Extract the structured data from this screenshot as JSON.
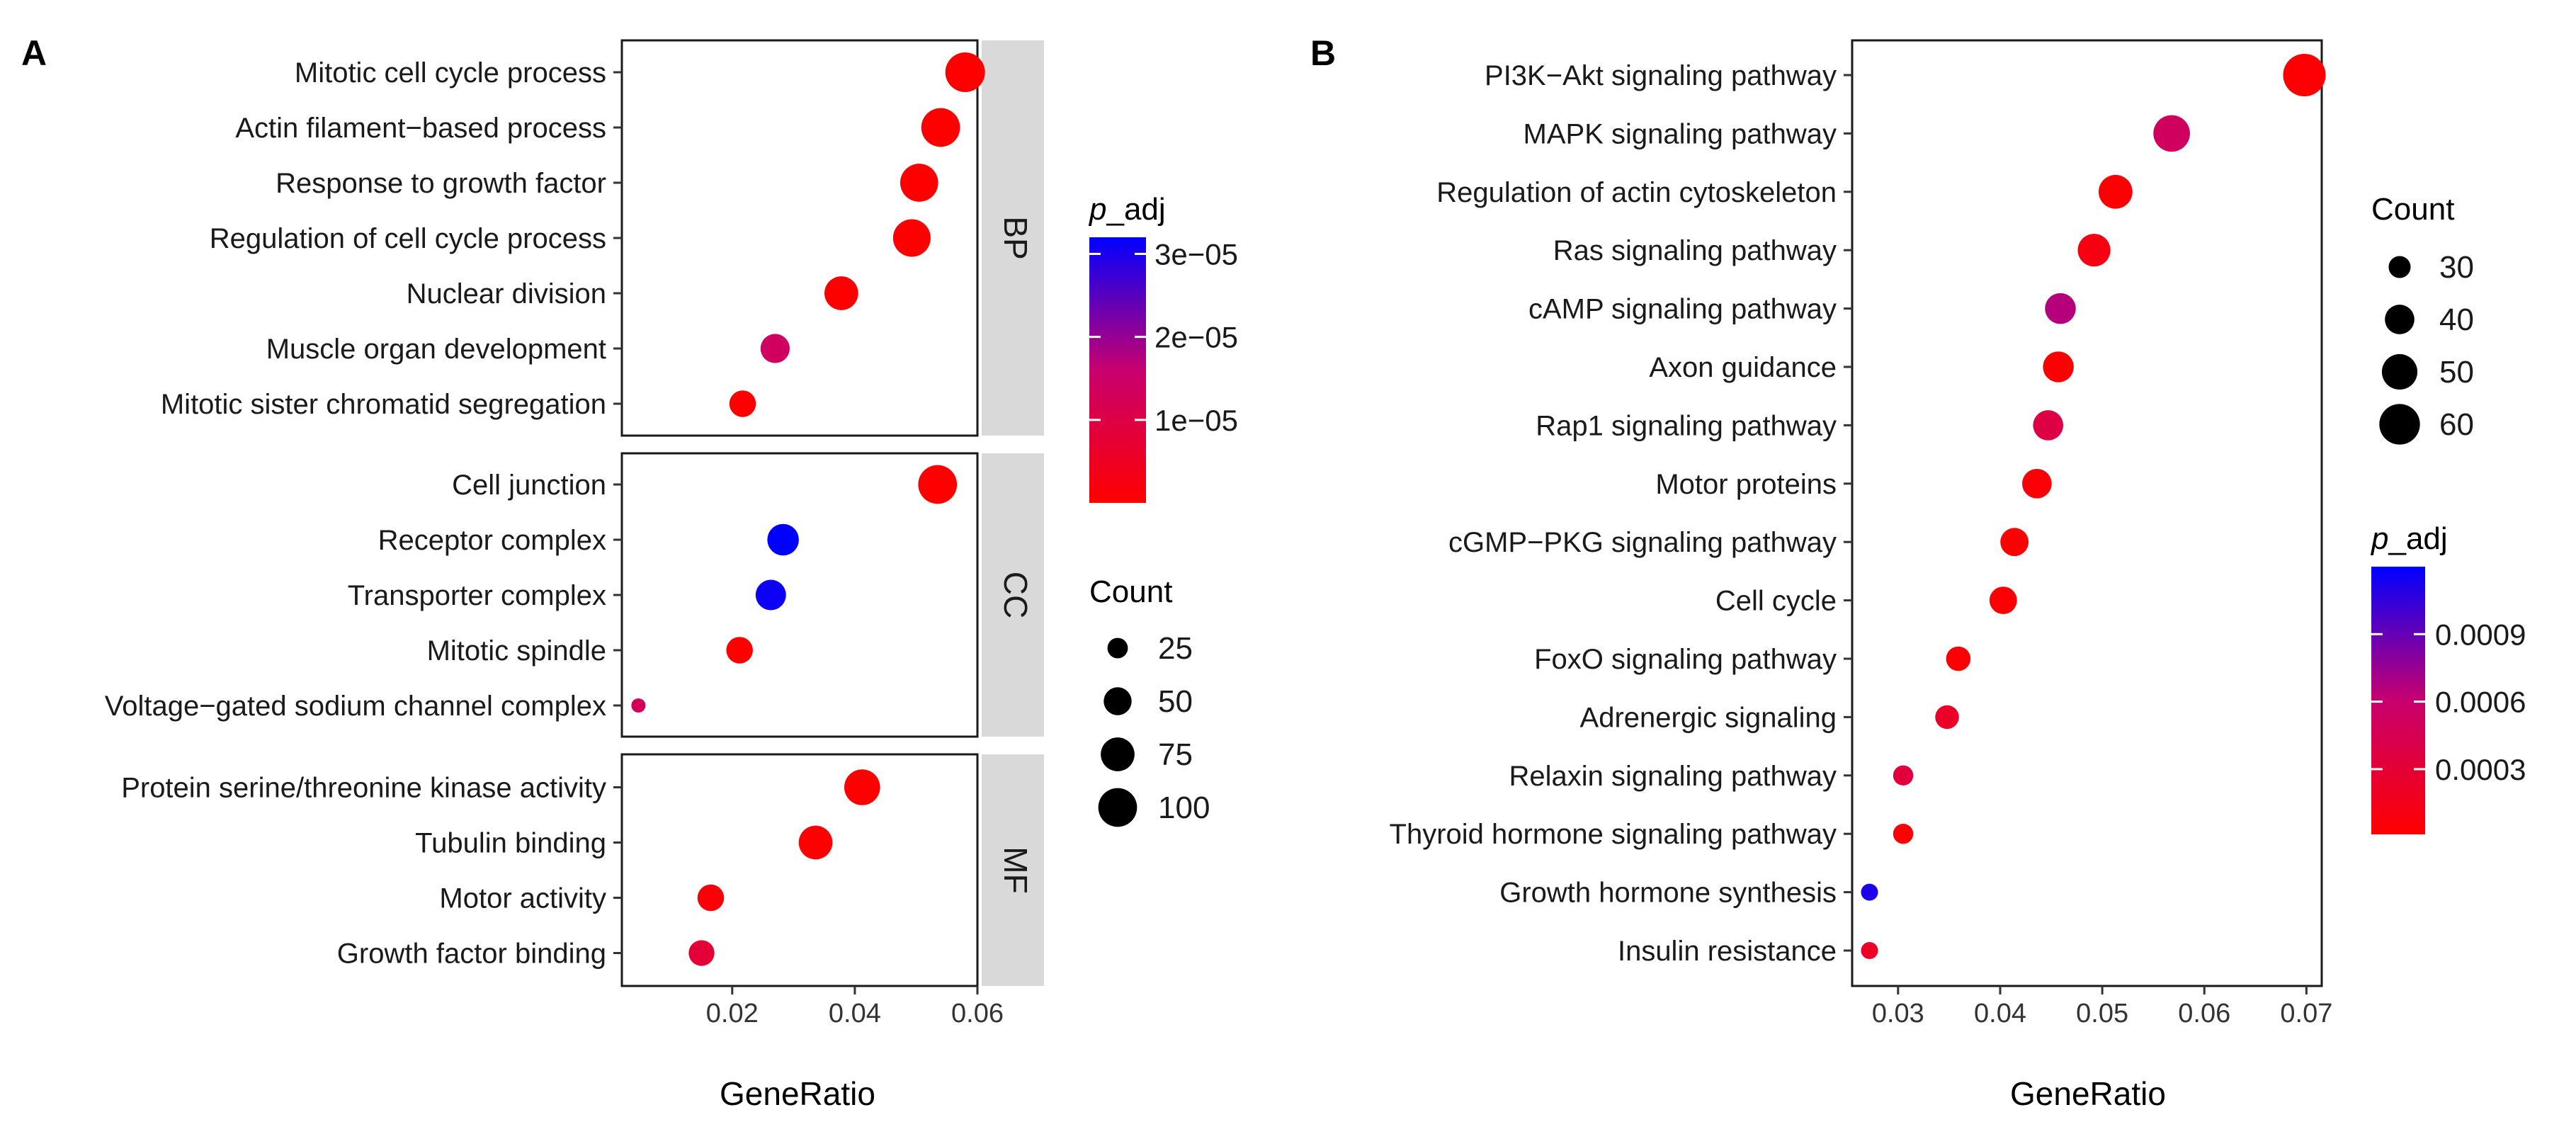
{
  "panels": [
    {
      "letter": "A"
    },
    {
      "letter": "B"
    }
  ],
  "chart_data": [
    {
      "type": "scatter",
      "panel": "A",
      "xlabel": "GeneRatio",
      "xlim": [
        0.002,
        0.06
      ],
      "xticks": [
        0.02,
        0.04,
        0.06
      ],
      "xtick_labels": [
        "0.02",
        "0.04",
        "0.06"
      ],
      "facets": [
        {
          "label": "BP",
          "categories": [
            "Mitotic cell cycle process",
            "Actin filament−based process",
            "Response to growth factor",
            "Regulation of cell cycle process",
            "Nuclear division",
            "Muscle organ development",
            "Mitotic sister chromatid segregation"
          ],
          "x": [
            0.058,
            0.054,
            0.0505,
            0.0493,
            0.0378,
            0.027,
            0.0217
          ],
          "count": [
            105,
            100,
            96,
            94,
            75,
            55,
            45
          ],
          "p_adj": [
            0.0,
            0.0,
            0.0,
            0.0,
            0.0,
            1.4e-05,
            0.0
          ]
        },
        {
          "label": "CC",
          "categories": [
            "Cell junction",
            "Receptor complex",
            "Transporter complex",
            "Mitotic spindle",
            "Voltage−gated sodium channel complex"
          ],
          "x": [
            0.0535,
            0.0283,
            0.0263,
            0.0212,
            0.0047
          ],
          "count": [
            100,
            65,
            60,
            45,
            10
          ],
          "p_adj": [
            0.0,
            3.2e-05,
            3.1e-05,
            0.0,
            1.3e-05
          ]
        },
        {
          "label": "MF",
          "categories": [
            "Protein serine/threonine kinase activity",
            "Tubulin binding",
            "Motor activity",
            "Growth factor binding"
          ],
          "x": [
            0.0412,
            0.0336,
            0.0165,
            0.015
          ],
          "count": [
            85,
            75,
            45,
            42
          ],
          "p_adj": [
            0.0,
            0.0,
            1e-06,
            8e-06
          ]
        }
      ],
      "colorbar": {
        "title_italic": "p",
        "title_rest": "_adj",
        "range": [
          0,
          3.2e-05
        ],
        "ticks": [
          1e-05,
          2e-05,
          3e-05
        ],
        "tick_labels": [
          "1e−05",
          "2e−05",
          "3e−05"
        ],
        "low_color": "#ff0000",
        "high_color": "#0000ff"
      },
      "size_legend": {
        "title": "Count",
        "values": [
          25,
          50,
          75,
          100
        ],
        "labels": [
          "25",
          "50",
          "75",
          "100"
        ],
        "range": [
          10,
          105
        ]
      }
    },
    {
      "type": "scatter",
      "panel": "B",
      "xlabel": "GeneRatio",
      "xlim": [
        0.0255,
        0.0715
      ],
      "xticks": [
        0.03,
        0.04,
        0.05,
        0.06,
        0.07
      ],
      "xtick_labels": [
        "0.03",
        "0.04",
        "0.05",
        "0.06",
        "0.07"
      ],
      "categories": [
        "PI3K−Akt signaling pathway",
        "MAPK signaling pathway",
        "Regulation of actin cytoskeleton",
        "Ras signaling pathway",
        "cAMP signaling pathway",
        "Axon guidance",
        "Rap1 signaling pathway",
        "Motor proteins",
        "cGMP−PKG signaling pathway",
        "Cell cycle",
        "FoxO signaling pathway",
        "Adrenergic signaling",
        "Relaxin signaling pathway",
        "Thyroid hormone signaling pathway",
        "Growth hormone synthesis",
        "Insulin resistance"
      ],
      "x": [
        0.0698,
        0.0568,
        0.0513,
        0.0492,
        0.0459,
        0.0457,
        0.0447,
        0.0436,
        0.0414,
        0.0403,
        0.0359,
        0.0348,
        0.0305,
        0.0305,
        0.0272,
        0.0272
      ],
      "count": [
        64,
        52,
        47,
        45,
        42,
        42,
        41,
        40,
        38,
        37,
        33,
        32,
        28,
        28,
        25,
        25
      ],
      "p_adj": [
        3e-05,
        0.00052,
        3e-05,
        0.00011,
        0.00066,
        3e-05,
        0.00038,
        5e-05,
        3e-05,
        3e-05,
        3e-05,
        0.00022,
        0.00033,
        3e-05,
        0.00112,
        0.00022
      ],
      "colorbar": {
        "title_italic": "p",
        "title_rest": "_adj",
        "range": [
          1e-05,
          0.0012
        ],
        "ticks": [
          0.0003,
          0.0006,
          0.0009
        ],
        "tick_labels": [
          "0.0003",
          "0.0006",
          "0.0009"
        ],
        "low_color": "#ff0000",
        "high_color": "#0000ff"
      },
      "size_legend": {
        "title": "Count",
        "values": [
          30,
          40,
          50,
          60
        ],
        "labels": [
          "30",
          "40",
          "50",
          "60"
        ],
        "range": [
          25,
          64
        ]
      }
    }
  ]
}
